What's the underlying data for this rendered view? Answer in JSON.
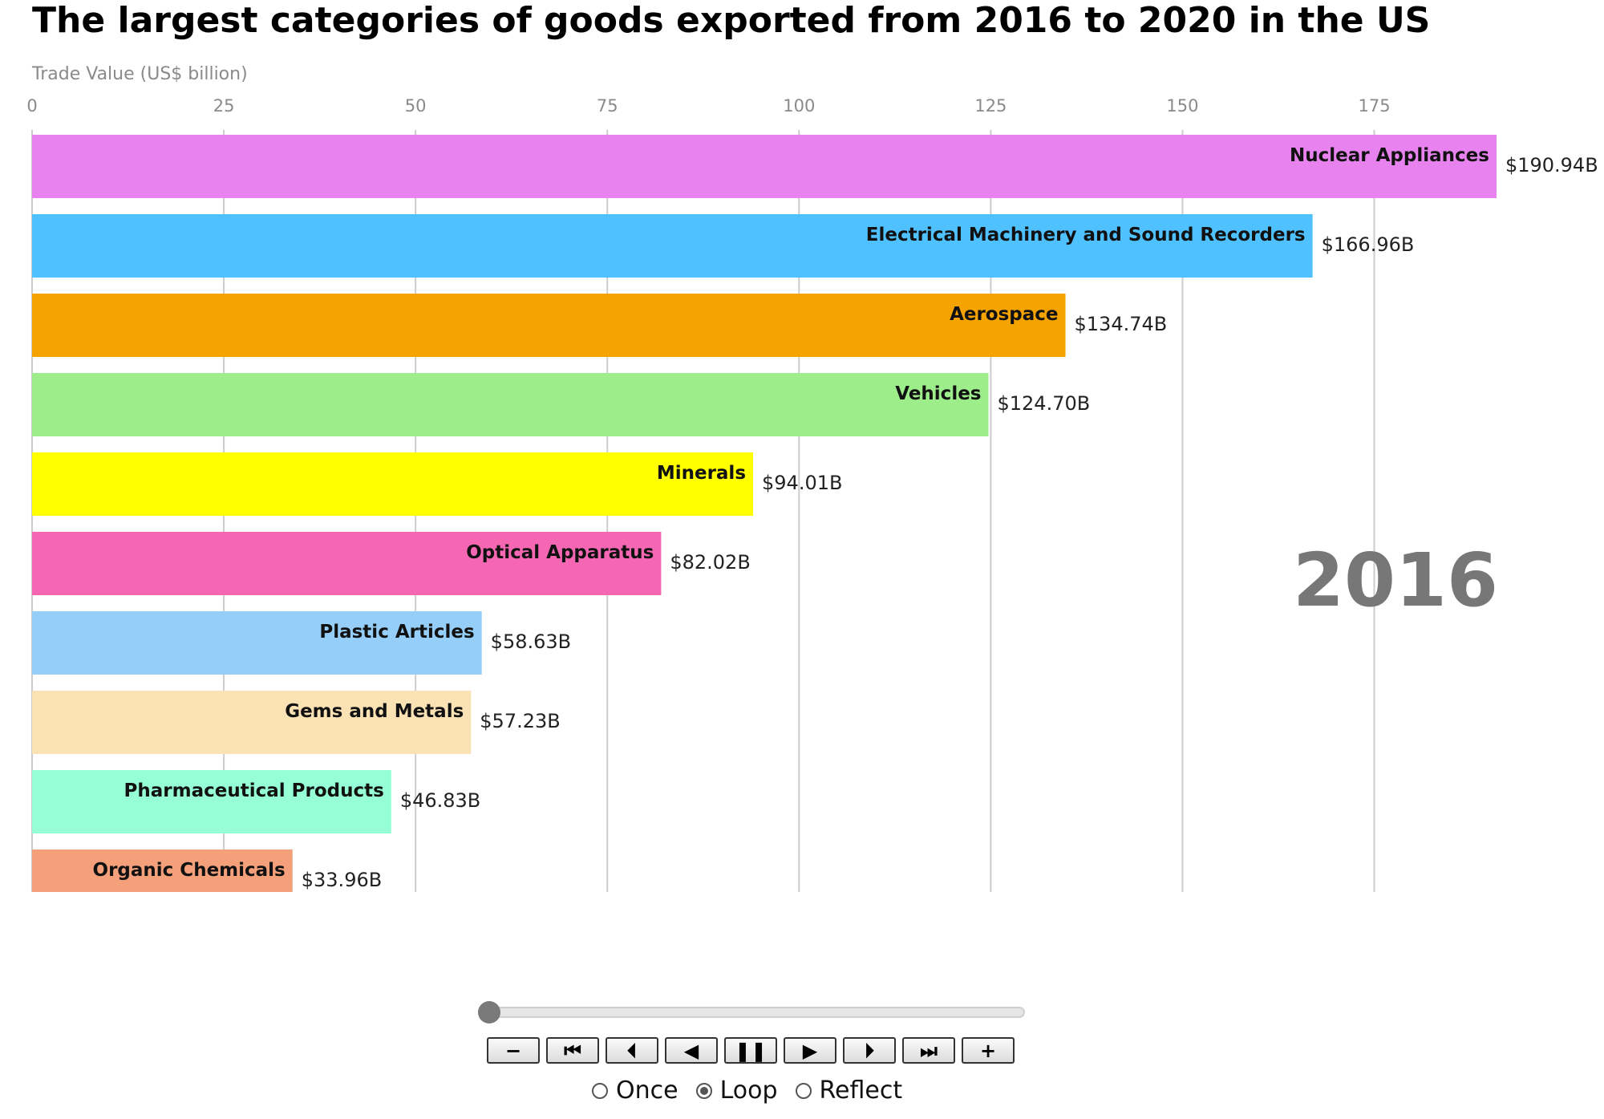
{
  "chart_data": {
    "type": "bar",
    "orientation": "horizontal",
    "title": "The largest categories of goods exported from 2016 to 2020 in the US",
    "xlabel": "Trade Value (US$ billion)",
    "xlim": [
      0,
      191
    ],
    "xticks": [
      0,
      25,
      50,
      75,
      100,
      125,
      150,
      175
    ],
    "year": "2016",
    "grid": true,
    "categories": [
      "Nuclear Appliances",
      "Electrical Machinery and Sound Recorders",
      "Aerospace",
      "Vehicles",
      "Minerals",
      "Optical Apparatus",
      "Plastic Articles",
      "Gems and Metals",
      "Pharmaceutical Products",
      "Organic Chemicals"
    ],
    "values": [
      190.94,
      166.96,
      134.74,
      124.7,
      94.01,
      82.02,
      58.63,
      57.23,
      46.83,
      33.96
    ],
    "value_labels": [
      "$190.94B",
      "$166.96B",
      "$134.74B",
      "$124.70B",
      "$94.01B",
      "$82.02B",
      "$58.63B",
      "$57.23B",
      "$46.83B",
      "$33.96B"
    ],
    "colors": [
      "#e882ef",
      "#4fc1ff",
      "#f5a300",
      "#9ded8a",
      "#ffff00",
      "#f567b3",
      "#94cef9",
      "#fbe2b5",
      "#96ffd5",
      "#f4a07b"
    ]
  },
  "controls": {
    "slider_value": 0,
    "buttons": [
      {
        "name": "zoom-out-button",
        "label": "−"
      },
      {
        "name": "first-frame-button",
        "label": "⏮"
      },
      {
        "name": "step-back-button",
        "label": "⏴"
      },
      {
        "name": "play-reverse-button",
        "label": "◀"
      },
      {
        "name": "pause-button",
        "label": "❚❚"
      },
      {
        "name": "play-button",
        "label": "▶"
      },
      {
        "name": "step-forward-button",
        "label": "⏵"
      },
      {
        "name": "last-frame-button",
        "label": "⏭"
      },
      {
        "name": "zoom-in-button",
        "label": "+"
      }
    ],
    "loop_options": [
      "Once",
      "Loop",
      "Reflect"
    ],
    "loop_selected": "Loop"
  }
}
